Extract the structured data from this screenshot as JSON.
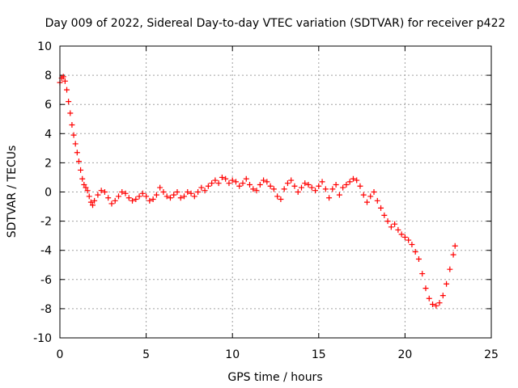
{
  "chart_data": {
    "type": "scatter",
    "title": "Day 009 of 2022, Sidereal Day-to-day VTEC variation (SDTVAR) for receiver p422",
    "xlabel": "GPS time / hours",
    "ylabel": "SDTVAR / TECUs",
    "xlim": [
      0,
      25
    ],
    "ylim": [
      -10,
      10
    ],
    "xticks": [
      0,
      5,
      10,
      15,
      20,
      25
    ],
    "yticks": [
      -10,
      -8,
      -6,
      -4,
      -2,
      0,
      2,
      4,
      6,
      8,
      10
    ],
    "xtick_labels": [
      "0",
      "5",
      "10",
      "15",
      "20",
      "25"
    ],
    "ytick_labels": [
      "-10",
      "-8",
      "-6",
      "-4",
      "-2",
      "0",
      "2",
      "4",
      "6",
      "8",
      "10"
    ],
    "grid": true,
    "marker": "+",
    "color": "#ff0000",
    "series": [
      {
        "name": "SDTVAR p422",
        "x": [
          0.0,
          0.1,
          0.2,
          0.3,
          0.4,
          0.5,
          0.6,
          0.7,
          0.8,
          0.9,
          1.0,
          1.1,
          1.2,
          1.3,
          1.4,
          1.5,
          1.6,
          1.7,
          1.8,
          1.9,
          2.0,
          2.2,
          2.4,
          2.6,
          2.8,
          3.0,
          3.2,
          3.4,
          3.6,
          3.8,
          4.0,
          4.2,
          4.4,
          4.6,
          4.8,
          5.0,
          5.2,
          5.4,
          5.6,
          5.8,
          6.0,
          6.2,
          6.4,
          6.6,
          6.8,
          7.0,
          7.2,
          7.4,
          7.6,
          7.8,
          8.0,
          8.2,
          8.4,
          8.6,
          8.8,
          9.0,
          9.2,
          9.4,
          9.6,
          9.8,
          10.0,
          10.2,
          10.4,
          10.6,
          10.8,
          11.0,
          11.2,
          11.4,
          11.6,
          11.8,
          12.0,
          12.2,
          12.4,
          12.6,
          12.8,
          13.0,
          13.2,
          13.4,
          13.6,
          13.8,
          14.0,
          14.2,
          14.4,
          14.6,
          14.8,
          15.0,
          15.2,
          15.4,
          15.6,
          15.8,
          16.0,
          16.2,
          16.4,
          16.6,
          16.8,
          17.0,
          17.2,
          17.4,
          17.6,
          17.8,
          18.0,
          18.2,
          18.4,
          18.6,
          18.8,
          19.0,
          19.2,
          19.4,
          19.6,
          19.8,
          20.0,
          20.2,
          20.4,
          20.6,
          20.8,
          21.0,
          21.2,
          21.4,
          21.6,
          21.8,
          22.0,
          22.2,
          22.4,
          22.6,
          22.8,
          22.9
        ],
        "y": [
          7.5,
          7.8,
          7.9,
          7.6,
          7.0,
          6.2,
          5.4,
          4.6,
          3.9,
          3.3,
          2.7,
          2.1,
          1.5,
          0.9,
          0.5,
          0.3,
          0.1,
          -0.3,
          -0.7,
          -0.9,
          -0.6,
          -0.2,
          0.1,
          0.0,
          -0.4,
          -0.8,
          -0.6,
          -0.3,
          0.0,
          -0.1,
          -0.4,
          -0.6,
          -0.5,
          -0.3,
          -0.1,
          -0.3,
          -0.6,
          -0.5,
          -0.2,
          0.3,
          0.0,
          -0.3,
          -0.4,
          -0.2,
          0.0,
          -0.4,
          -0.3,
          0.0,
          -0.1,
          -0.3,
          0.0,
          0.3,
          0.1,
          0.4,
          0.6,
          0.8,
          0.6,
          1.0,
          0.9,
          0.6,
          0.8,
          0.7,
          0.4,
          0.6,
          0.9,
          0.5,
          0.2,
          0.1,
          0.5,
          0.8,
          0.7,
          0.4,
          0.2,
          -0.3,
          -0.5,
          0.2,
          0.6,
          0.8,
          0.4,
          0.0,
          0.3,
          0.6,
          0.5,
          0.3,
          0.1,
          0.4,
          0.7,
          0.2,
          -0.4,
          0.2,
          0.5,
          -0.2,
          0.3,
          0.5,
          0.7,
          0.9,
          0.8,
          0.4,
          -0.2,
          -0.7,
          -0.3,
          0.0,
          -0.6,
          -1.1,
          -1.6,
          -2.0,
          -2.4,
          -2.2,
          -2.6,
          -2.9,
          -3.1,
          -3.3,
          -3.6,
          -4.1,
          -4.6,
          -5.6,
          -6.6,
          -7.3,
          -7.7,
          -7.8,
          -7.6,
          -7.1,
          -6.3,
          -5.3,
          -4.3,
          -3.7
        ]
      }
    ]
  }
}
